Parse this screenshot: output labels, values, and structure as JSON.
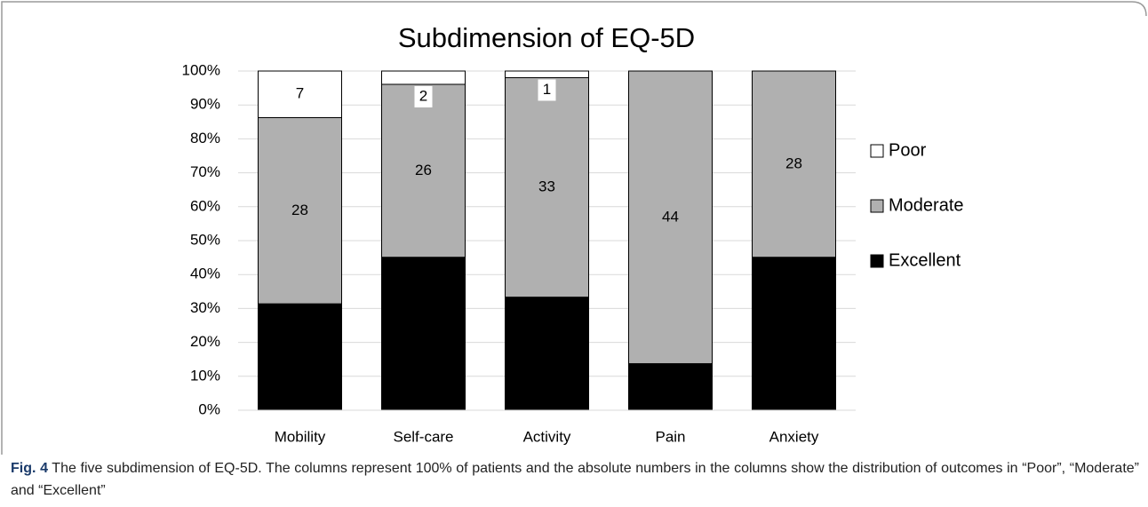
{
  "chart_data": {
    "type": "bar",
    "stacking": "percent",
    "title": "Subdimension of EQ-5D",
    "categories": [
      "Mobility",
      "Self-care",
      "Activity",
      "Pain",
      "Anxiety"
    ],
    "series": [
      {
        "name": "Excellent",
        "color": "#000000",
        "label_color": "#ffffff",
        "values": [
          16,
          23,
          17,
          7,
          23
        ]
      },
      {
        "name": "Moderate",
        "color": "#b0b0b0",
        "label_color": "#000000",
        "values": [
          28,
          26,
          33,
          44,
          28
        ]
      },
      {
        "name": "Poor",
        "color": "#ffffff",
        "label_color": "#000000",
        "values": [
          7,
          2,
          1,
          0,
          0
        ]
      }
    ],
    "ylim": [
      0,
      100
    ],
    "yticks": [
      {
        "value": 0,
        "label": "0%"
      },
      {
        "value": 10,
        "label": "10%"
      },
      {
        "value": 20,
        "label": "20%"
      },
      {
        "value": 30,
        "label": "30%"
      },
      {
        "value": 40,
        "label": "40%"
      },
      {
        "value": 50,
        "label": "50%"
      },
      {
        "value": 60,
        "label": "60%"
      },
      {
        "value": 70,
        "label": "70%"
      },
      {
        "value": 80,
        "label": "80%"
      },
      {
        "value": 90,
        "label": "90%"
      },
      {
        "value": 100,
        "label": "100%"
      }
    ],
    "grid": true,
    "legend": "right"
  },
  "caption": {
    "label": "Fig. 4",
    "text": " The five subdimension of EQ-5D. The columns represent 100% of patients and the absolute numbers in the columns show the distribution of outcomes in “Poor”, “Moderate” and “Excellent”"
  }
}
